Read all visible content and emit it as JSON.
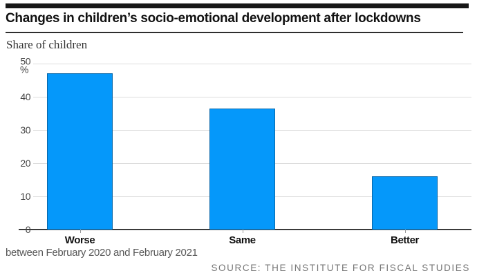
{
  "header": {
    "title": "Changes in children’s socio-emotional development after lockdowns"
  },
  "chart_data": {
    "type": "bar",
    "title": "Changes in children’s socio-emotional development after lockdowns",
    "subtitle": "Share of children",
    "categories": [
      "Worse",
      "Same",
      "Better"
    ],
    "values": [
      47,
      36.5,
      16
    ],
    "unit_label": "%",
    "ylabel": "Share of children",
    "ylim": [
      0,
      50
    ],
    "yticks": [
      0,
      10,
      20,
      30,
      40,
      50
    ],
    "grid": true,
    "legend": false,
    "bar_color": "#0598fa",
    "note": "between February 2020 and February 2021"
  },
  "footer": {
    "note": "between February 2020 and February 2021",
    "source": "SOURCE: THE INSTITUTE FOR FISCAL STUDIES"
  }
}
